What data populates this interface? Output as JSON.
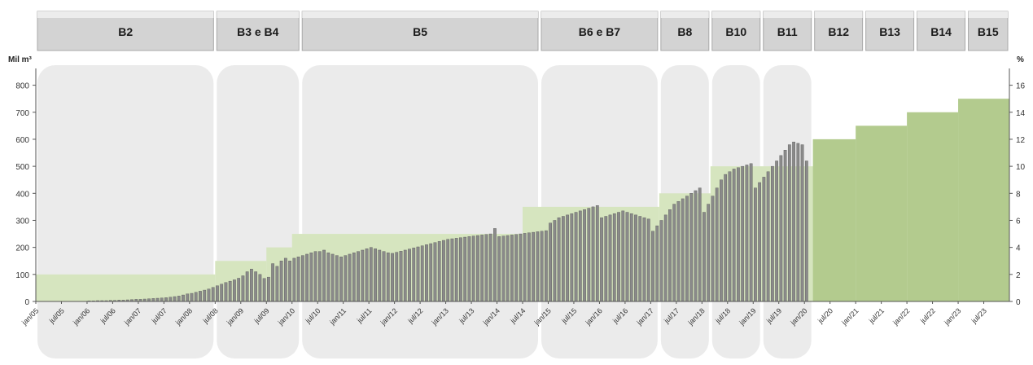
{
  "chart_data": {
    "type": "bar",
    "y_left_unit": "Mil m³",
    "y_right_unit": "%",
    "y_left_ticks": [
      "0",
      "100",
      "200",
      "300",
      "400",
      "500",
      "600",
      "700",
      "800"
    ],
    "y_right_ticks": [
      "0",
      "2",
      "4",
      "6",
      "8",
      "10",
      "12",
      "14",
      "16"
    ],
    "ylim_left": [
      0,
      850
    ],
    "ylim_right": [
      0,
      17
    ],
    "start_month": "2005-01",
    "end_month": "2023-12",
    "x_tick_labels": [
      "jan/05",
      "jul/05",
      "jan/06",
      "jul/06",
      "jan/07",
      "jul/07",
      "jan/08",
      "jul/08",
      "jan/09",
      "jul/09",
      "jan/10",
      "jul/10",
      "jan/11",
      "jul/11",
      "jan/12",
      "jul/12",
      "jan/13",
      "jul/13",
      "jan/14",
      "jul/14",
      "jan/15",
      "jul/15",
      "jan/16",
      "jul/16",
      "jan/17",
      "jul/17",
      "jan/18",
      "jul/18",
      "jan/19",
      "jul/19",
      "jan/20",
      "jul/20",
      "jan/21",
      "jul/21",
      "jan/22",
      "jul/22",
      "jan/23",
      "jul/23"
    ],
    "phases": [
      {
        "label": "B2",
        "start": "2005-01",
        "end": "2008-06"
      },
      {
        "label": "B3 e B4",
        "start": "2008-07",
        "end": "2010-02"
      },
      {
        "label": "B5",
        "start": "2010-03",
        "end": "2014-10"
      },
      {
        "label": "B6 e B7",
        "start": "2014-11",
        "end": "2017-02"
      },
      {
        "label": "B8",
        "start": "2017-03",
        "end": "2018-02"
      },
      {
        "label": "B10",
        "start": "2018-03",
        "end": "2019-02"
      },
      {
        "label": "B11",
        "start": "2019-03",
        "end": "2020-02"
      },
      {
        "label": "B12",
        "start": "2020-03",
        "end": "2021-02"
      },
      {
        "label": "B13",
        "start": "2021-03",
        "end": "2022-02"
      },
      {
        "label": "B14",
        "start": "2022-03",
        "end": "2023-02"
      },
      {
        "label": "B15",
        "start": "2023-03",
        "end": "2023-12"
      }
    ],
    "series": [
      {
        "type": "step-area",
        "axis": "right",
        "values_percent": [
          {
            "start": "2005-01",
            "end": "2008-06",
            "value": 2
          },
          {
            "start": "2008-07",
            "end": "2009-06",
            "value": 3
          },
          {
            "start": "2009-07",
            "end": "2009-12",
            "value": 4
          },
          {
            "start": "2010-01",
            "end": "2014-06",
            "value": 5
          },
          {
            "start": "2014-07",
            "end": "2017-02",
            "value": 7
          },
          {
            "start": "2017-03",
            "end": "2018-02",
            "value": 8
          },
          {
            "start": "2018-03",
            "end": "2020-02",
            "value": 10
          },
          {
            "start": "2020-03",
            "end": "2020-12",
            "value": 12
          },
          {
            "start": "2021-01",
            "end": "2021-12",
            "value": 13
          },
          {
            "start": "2022-01",
            "end": "2022-12",
            "value": 14
          },
          {
            "start": "2023-01",
            "end": "2023-12",
            "value": 15
          }
        ]
      },
      {
        "type": "bar",
        "axis": "left",
        "monthly_values_by_year": {
          "2005": [
            0,
            0,
            0,
            0,
            0,
            0,
            0,
            0,
            0,
            0,
            0,
            0
          ],
          "2006": [
            2,
            2,
            3,
            3,
            3,
            4,
            4,
            5,
            5,
            6,
            7,
            8
          ],
          "2007": [
            8,
            9,
            10,
            11,
            12,
            13,
            14,
            16,
            18,
            20,
            24,
            28
          ],
          "2008": [
            30,
            34,
            38,
            42,
            46,
            52,
            58,
            64,
            70,
            75,
            80,
            86
          ],
          "2009": [
            95,
            110,
            120,
            110,
            100,
            85,
            90,
            140,
            130,
            150,
            160,
            150
          ],
          "2010": [
            160,
            165,
            170,
            175,
            180,
            185,
            185,
            190,
            180,
            175,
            170,
            165
          ],
          "2011": [
            170,
            175,
            180,
            185,
            190,
            195,
            200,
            195,
            190,
            185,
            180,
            178
          ],
          "2012": [
            182,
            186,
            190,
            194,
            198,
            202,
            206,
            210,
            214,
            218,
            222,
            226
          ],
          "2013": [
            230,
            232,
            234,
            236,
            238,
            240,
            242,
            244,
            246,
            248,
            250,
            270
          ],
          "2014": [
            240,
            242,
            244,
            246,
            248,
            250,
            252,
            254,
            256,
            258,
            260,
            262
          ],
          "2015": [
            290,
            300,
            310,
            315,
            320,
            325,
            330,
            335,
            340,
            345,
            350,
            355
          ],
          "2016": [
            310,
            315,
            320,
            325,
            330,
            335,
            330,
            325,
            320,
            315,
            310,
            305
          ],
          "2017": [
            260,
            280,
            300,
            320,
            340,
            360,
            370,
            380,
            390,
            400,
            410,
            420
          ],
          "2018": [
            330,
            360,
            390,
            420,
            450,
            470,
            480,
            490,
            495,
            500,
            505,
            510
          ],
          "2019": [
            420,
            440,
            460,
            480,
            500,
            520,
            540,
            560,
            580,
            590,
            585,
            580
          ],
          "2020": [
            520
          ]
        }
      }
    ],
    "colors": {
      "phase_box": "#d3d3d3",
      "phase_box_edge": "#a8a8a8",
      "step_area_light": "#d6e5bf",
      "step_area_dark": "#b3cb8e",
      "bars": "#8a8a8a",
      "bar_edge": "#5a5a5a",
      "rounded_bg": "#ebebeb",
      "axis": "#555555"
    }
  }
}
